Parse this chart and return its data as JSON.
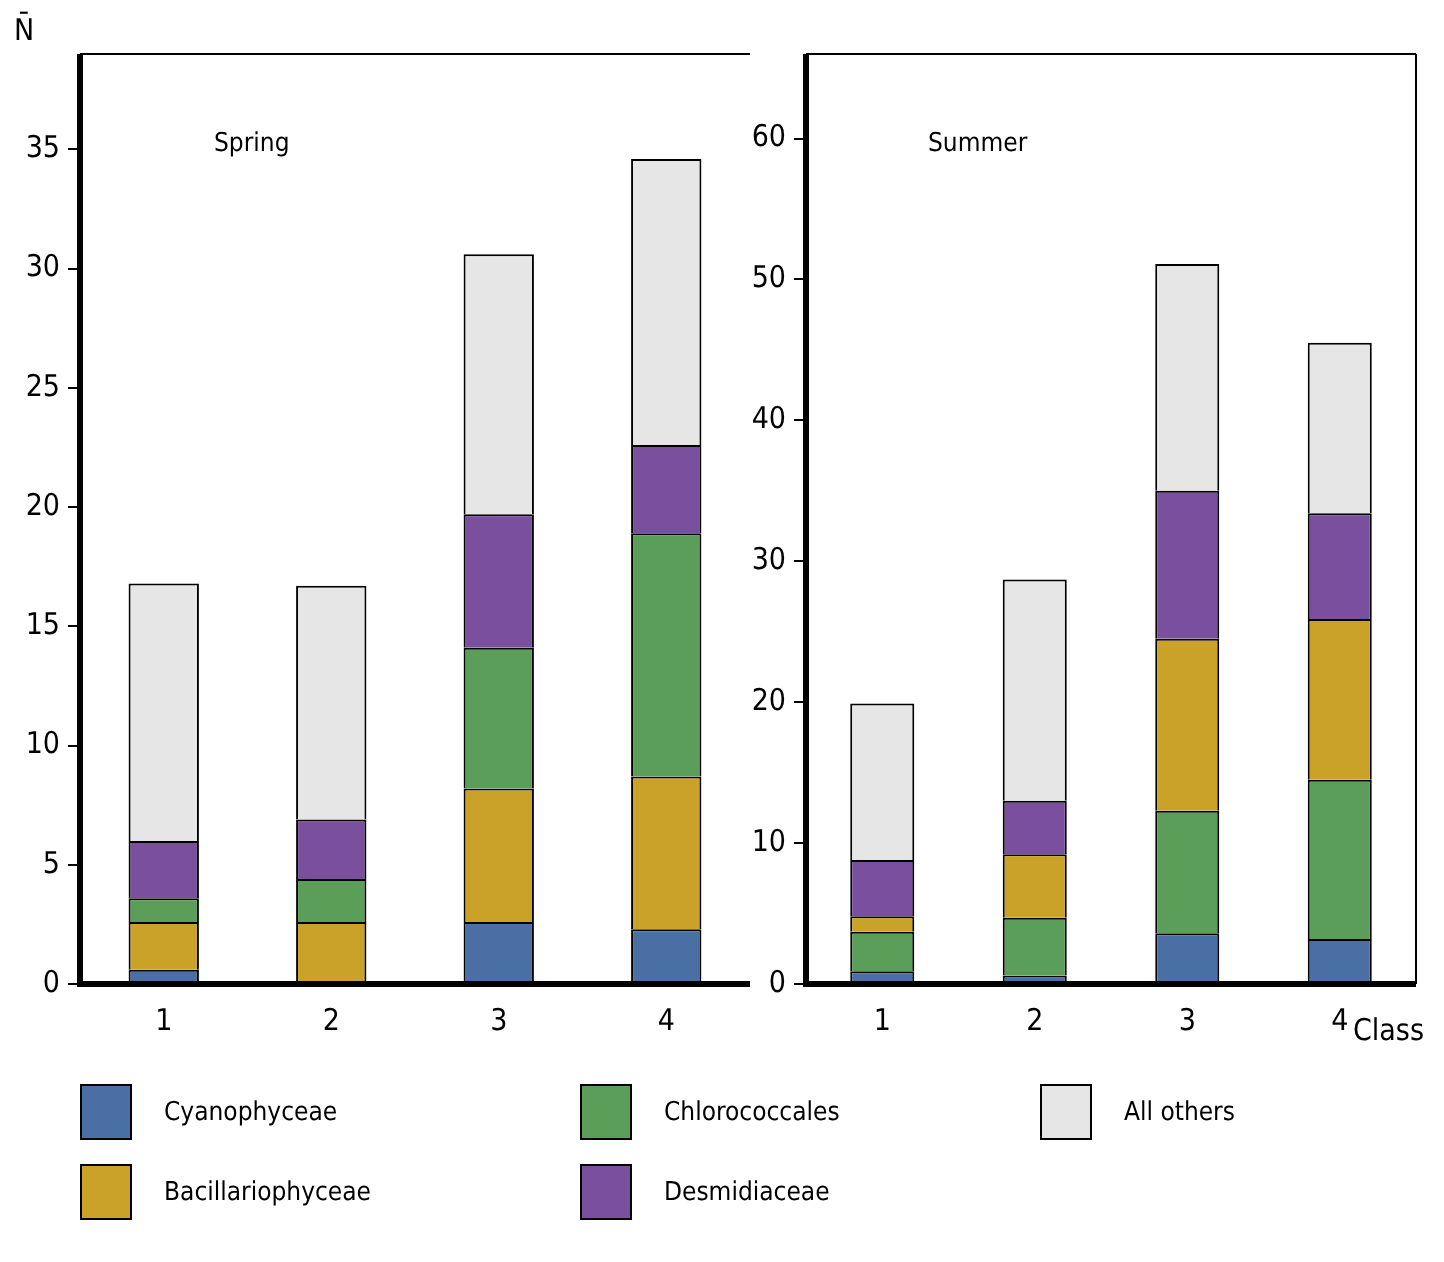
{
  "chart_data": [
    {
      "type": "bar",
      "title": "Spring",
      "ylabel": "N̄",
      "categories": [
        "1",
        "2",
        "3",
        "4"
      ],
      "stacked": true,
      "legend": "bottom",
      "ylim": [
        0,
        39
      ],
      "yticks": [
        0,
        5,
        10,
        15,
        20,
        25,
        30,
        35
      ],
      "series": [
        {
          "name": "Cyanophyceae",
          "color": "#4a6fa5",
          "values": [
            0.6,
            0,
            2.6,
            2.3
          ]
        },
        {
          "name": "Bacillariophyceae",
          "color": "#c9a227",
          "values": [
            2.0,
            2.6,
            5.6,
            6.4
          ]
        },
        {
          "name": "Chlorococcales",
          "color": "#5a9e5a",
          "values": [
            1.0,
            1.8,
            5.9,
            10.2
          ]
        },
        {
          "name": "Desmidiaceae",
          "color": "#7a4f9e",
          "values": [
            2.4,
            2.5,
            5.6,
            3.7
          ]
        },
        {
          "name": "All others",
          "color": "#e6e6e6",
          "values": [
            10.8,
            9.8,
            10.9,
            12.0
          ]
        }
      ]
    },
    {
      "type": "bar",
      "title": "Summer",
      "xlabel": "Class",
      "categories": [
        "1",
        "2",
        "3",
        "4"
      ],
      "stacked": true,
      "ylim": [
        0,
        66
      ],
      "yticks": [
        0,
        10,
        20,
        30,
        40,
        50,
        60
      ],
      "series": [
        {
          "name": "Cyanophyceae",
          "color": "#4a6fa5",
          "values": [
            0.9,
            0.6,
            3.6,
            3.2
          ]
        },
        {
          "name": "Chlorococcales",
          "color": "#5a9e5a",
          "values": [
            2.8,
            4.1,
            8.7,
            11.3
          ]
        },
        {
          "name": "Bacillariophyceae",
          "color": "#c9a227",
          "values": [
            1.1,
            4.5,
            12.2,
            11.4
          ]
        },
        {
          "name": "Desmidiaceae",
          "color": "#7a4f9e",
          "values": [
            4.0,
            3.8,
            10.5,
            7.5
          ]
        },
        {
          "name": "All others",
          "color": "#e6e6e6",
          "values": [
            11.1,
            15.7,
            16.1,
            12.1
          ]
        }
      ]
    }
  ]
}
